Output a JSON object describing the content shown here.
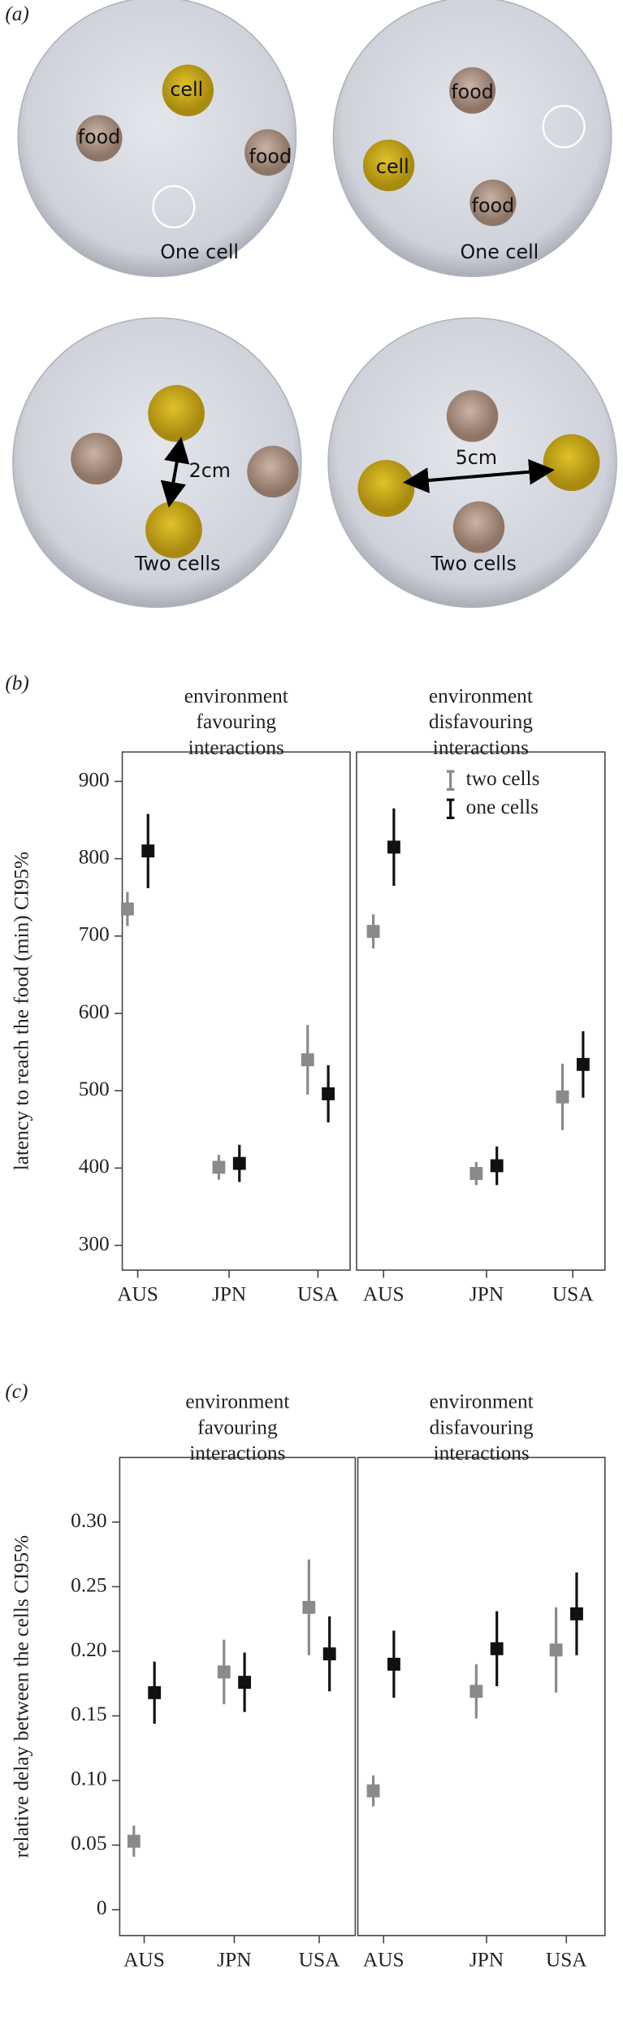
{
  "panel_a": {
    "label": "(a)",
    "dishes": [
      {
        "labels": [
          "cell",
          "food",
          "food",
          "One cell"
        ]
      },
      {
        "labels": [
          "food",
          "cell",
          "food",
          "One cell"
        ]
      },
      {
        "labels": [
          "2cm",
          "Two cells"
        ]
      },
      {
        "labels": [
          "5cm",
          "Two cells"
        ]
      }
    ]
  },
  "chart_data": [
    {
      "type": "errorbar",
      "panel_label": "(b)",
      "title_lines": [
        "environment",
        "favouring",
        "interactions"
      ],
      "ylabel": "latency to reach the food (min) CI95%",
      "categories": [
        "AUS",
        "JPN",
        "USA"
      ],
      "ylim": [
        268,
        938
      ],
      "yticks": [
        300,
        400,
        500,
        600,
        700,
        800,
        900
      ],
      "series": [
        {
          "color": "#8a8a8a",
          "values": [
            735,
            401,
            540
          ],
          "errors": [
            22,
            16,
            45
          ]
        },
        {
          "color": "#111111",
          "values": [
            810,
            406,
            496
          ],
          "errors": [
            48,
            24,
            37
          ]
        }
      ]
    },
    {
      "type": "errorbar",
      "title_lines": [
        "environment",
        "disfavouring",
        "interactions"
      ],
      "legend": "upper right",
      "categories": [
        "AUS",
        "JPN",
        "USA"
      ],
      "ylim": [
        268,
        938
      ],
      "series": [
        {
          "name": "two cells",
          "color": "#8a8a8a",
          "values": [
            706,
            393,
            492
          ],
          "errors": [
            22,
            15,
            43
          ]
        },
        {
          "name": "one cells",
          "color": "#111111",
          "values": [
            815,
            403,
            534
          ],
          "errors": [
            50,
            25,
            43
          ]
        }
      ]
    },
    {
      "type": "errorbar",
      "panel_label": "(c)",
      "title_lines": [
        "environment",
        "favouring",
        "interactions"
      ],
      "ylabel": "relative delay between the cells CI95%",
      "categories": [
        "AUS",
        "JPN",
        "USA"
      ],
      "ylim": [
        -0.02,
        0.35
      ],
      "yticks": [
        0,
        0.05,
        {
          "value": 0.1,
          "label": "0.10"
        },
        0.15,
        {
          "value": 0.2,
          "label": "0.20"
        },
        0.25,
        {
          "value": 0.3,
          "label": "0.30"
        }
      ],
      "series": [
        {
          "color": "#8a8a8a",
          "values": [
            0.053,
            0.184,
            0.234
          ],
          "errors": [
            0.012,
            0.025,
            0.037
          ]
        },
        {
          "color": "#111111",
          "values": [
            0.168,
            0.176,
            0.198
          ],
          "errors": [
            0.024,
            0.023,
            0.029
          ]
        }
      ]
    },
    {
      "type": "errorbar",
      "title_lines": [
        "environment",
        "disfavouring",
        "interactions"
      ],
      "categories": [
        "AUS",
        "JPN",
        "USA"
      ],
      "ylim": [
        -0.02,
        0.35
      ],
      "series": [
        {
          "color": "#8a8a8a",
          "values": [
            0.092,
            0.169,
            0.201
          ],
          "errors": [
            0.012,
            0.021,
            0.033
          ]
        },
        {
          "color": "#111111",
          "values": [
            0.19,
            0.202,
            0.229
          ],
          "errors": [
            0.026,
            0.029,
            0.032
          ]
        }
      ]
    }
  ]
}
